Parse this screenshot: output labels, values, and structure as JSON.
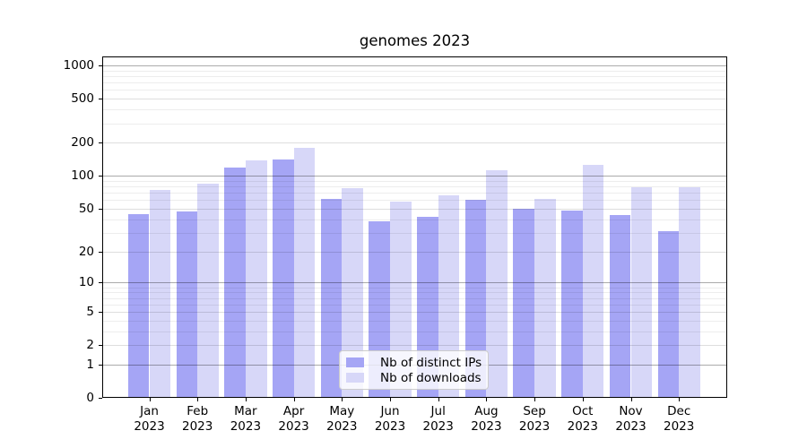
{
  "chart_data": {
    "type": "bar",
    "title": "genomes 2023",
    "categories": [
      "Jan",
      "Feb",
      "Mar",
      "Apr",
      "May",
      "Jun",
      "Jul",
      "Aug",
      "Sep",
      "Oct",
      "Nov",
      "Dec"
    ],
    "year": "2023",
    "series": [
      {
        "name": "Nb of distinct IPs",
        "color": "#a5a5f5",
        "values": [
          45,
          47,
          118,
          140,
          61,
          38,
          42,
          60,
          50,
          48,
          44,
          31
        ]
      },
      {
        "name": "Nb of downloads",
        "color": "#d7d7f8",
        "values": [
          75,
          85,
          138,
          180,
          77,
          58,
          67,
          112,
          61,
          125,
          78,
          78
        ]
      }
    ],
    "xlabel": "",
    "ylabel": "",
    "yscale": "log1p",
    "yticks": [
      0,
      1,
      2,
      5,
      10,
      20,
      50,
      100,
      200,
      500,
      1000
    ],
    "ylim": [
      0,
      1205
    ],
    "grid": true,
    "grid_major_values": [
      1,
      10,
      100,
      1000
    ],
    "grid_mid_values": [
      2,
      5,
      20,
      50,
      200,
      500
    ],
    "grid_minor_values": [
      3,
      4,
      6,
      7,
      8,
      9,
      30,
      40,
      60,
      70,
      80,
      90,
      300,
      400,
      600,
      700,
      800,
      900
    ],
    "legend_position": "lower center"
  }
}
